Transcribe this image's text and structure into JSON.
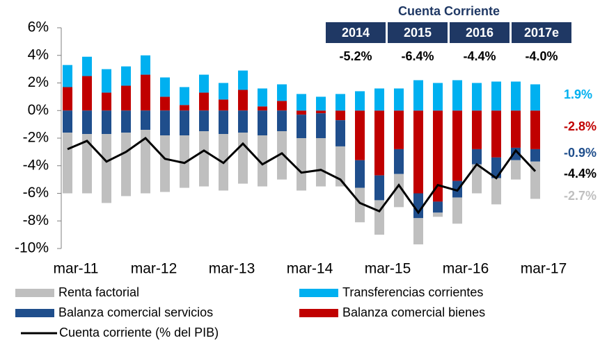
{
  "chart_data": {
    "type": "bar",
    "categories": [
      "mar-11",
      null,
      null,
      null,
      "mar-12",
      null,
      null,
      null,
      "mar-13",
      null,
      null,
      null,
      "mar-14",
      null,
      null,
      null,
      "mar-15",
      null,
      null,
      null,
      "mar-16",
      null,
      null,
      null,
      "mar-17"
    ],
    "series": [
      {
        "name": "Renta factorial",
        "color": "#bfbfbf",
        "values": [
          -4.4,
          -4.3,
          -5.0,
          -4.6,
          -4.6,
          -4.1,
          -3.8,
          -4.0,
          -4.1,
          -3.7,
          -3.7,
          -3.5,
          -3.8,
          -3.5,
          -2.9,
          -2.5,
          -2.5,
          -2.4,
          -1.9,
          -0.3,
          -1.9,
          -2.1,
          -1.9,
          -1.4,
          -2.7
        ],
        "last_label": "-2.7%"
      },
      {
        "name": "Transferencias corrientes",
        "color": "#00b0f0",
        "values": [
          1.6,
          1.4,
          1.7,
          1.4,
          1.4,
          1.4,
          1.3,
          1.3,
          1.2,
          1.4,
          1.3,
          1.2,
          1.2,
          1.0,
          1.2,
          1.4,
          1.6,
          1.6,
          2.2,
          2.0,
          2.2,
          2.0,
          2.1,
          2.1,
          1.9
        ],
        "last_label": "1.9%"
      },
      {
        "name": "Balanza comercial servicios",
        "color": "#1f4e8c",
        "values": [
          -1.6,
          -1.7,
          -1.7,
          -1.6,
          -1.4,
          -1.8,
          -1.8,
          -1.5,
          -1.7,
          -1.6,
          -1.8,
          -1.5,
          -1.7,
          -1.8,
          -1.9,
          -2.0,
          -1.8,
          -1.8,
          -1.8,
          -0.8,
          -1.2,
          -1.1,
          -1.5,
          -0.9,
          -0.9
        ],
        "last_label": "-0.9%"
      },
      {
        "name": "Balanza comercial bienes",
        "color": "#c00000",
        "values": [
          1.7,
          2.5,
          1.3,
          1.8,
          2.6,
          1.0,
          0.4,
          1.3,
          0.8,
          1.5,
          0.3,
          0.7,
          -0.3,
          -0.2,
          -0.7,
          -3.6,
          -4.7,
          -2.8,
          -6.0,
          -6.6,
          -5.1,
          -2.8,
          -3.4,
          -2.7,
          -2.8
        ],
        "last_label": "-2.8%"
      },
      {
        "name": "Cuenta corriente (% del PIB)",
        "type": "line",
        "color": "#000000",
        "values": [
          -2.8,
          -2.2,
          -3.7,
          -3.0,
          -2.0,
          -3.5,
          -3.8,
          -2.9,
          -3.8,
          -2.4,
          -3.9,
          -3.1,
          -4.5,
          -4.3,
          -5.0,
          -6.7,
          -7.3,
          -5.4,
          -7.4,
          -5.4,
          -5.8,
          -3.9,
          -4.9,
          -2.9,
          -4.4
        ],
        "last_label": "-4.4%"
      }
    ],
    "ylim": [
      -10,
      6
    ],
    "yticks": [
      {
        "value": -10,
        "label": "-10%"
      },
      {
        "value": -8,
        "label": "-8%"
      },
      {
        "value": -6,
        "label": "-6%"
      },
      {
        "value": -4,
        "label": "-4%"
      },
      {
        "value": -2,
        "label": "-2%"
      },
      {
        "value": 0,
        "label": "0%"
      },
      {
        "value": 2,
        "label": "2%"
      },
      {
        "value": 4,
        "label": "4%"
      },
      {
        "value": 6,
        "label": "6%"
      }
    ],
    "annotation_table": {
      "title": "Cuenta Corriente",
      "columns": [
        "2014",
        "2015",
        "2016",
        "2017e"
      ],
      "values": [
        "-5.2%",
        "-6.4%",
        "-4.4%",
        "-4.0%"
      ]
    }
  }
}
